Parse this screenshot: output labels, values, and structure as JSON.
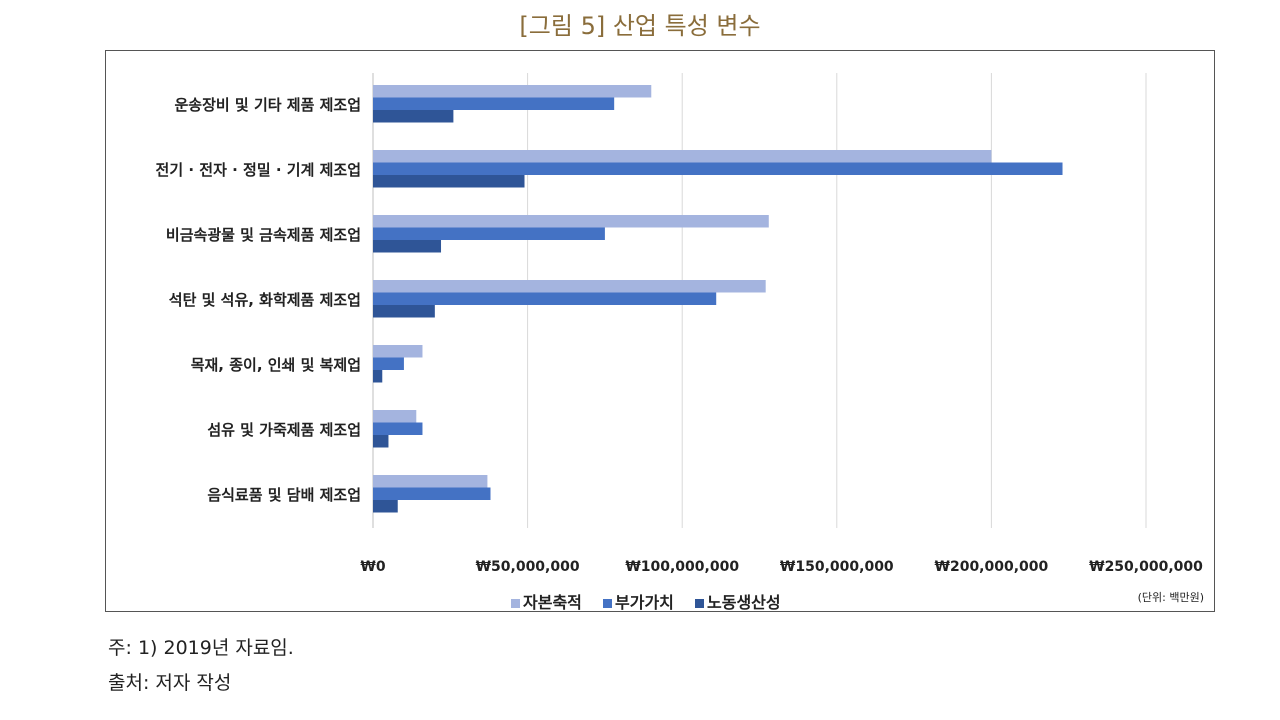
{
  "figure_title": "[그림 5] 산업 특성 변수",
  "notes": {
    "note1_prefix": "주:",
    "note1_text": "1) 2019년 자료임.",
    "note2_prefix": "출처:",
    "note2_text": "저자 작성"
  },
  "chart_data": {
    "type": "bar",
    "orientation": "horizontal",
    "categories": [
      "운송장비 및 기타 제품 제조업",
      "전기 · 전자 · 정밀 · 기계 제조업",
      "비금속광물 및 금속제품 제조업",
      "석탄 및 석유, 화학제품 제조업",
      "목재, 종이, 인쇄 및 복제업",
      "섬유 및 가죽제품 제조업",
      "음식료품 및 담배 제조업"
    ],
    "series": [
      {
        "name": "자본축적",
        "color": "#a4b4df",
        "values": [
          90000000,
          200000000,
          128000000,
          127000000,
          16000000,
          14000000,
          37000000
        ]
      },
      {
        "name": "부가가치",
        "color": "#4472c4",
        "values": [
          78000000,
          223000000,
          75000000,
          111000000,
          10000000,
          16000000,
          38000000
        ]
      },
      {
        "name": "노동생산성",
        "color": "#2f5597",
        "values": [
          26000000,
          49000000,
          22000000,
          20000000,
          3000000,
          5000000,
          8000000
        ]
      }
    ],
    "xlim": [
      0,
      250000000
    ],
    "xticks": [
      0,
      50000000,
      100000000,
      150000000,
      200000000,
      250000000
    ],
    "xtick_labels": [
      "₩0",
      "₩50,000,000",
      "₩100,000,000",
      "₩150,000,000",
      "₩200,000,000",
      "₩250,000,000"
    ],
    "unit_note": "(단위: 백만원)",
    "grid": true,
    "legend_position": "bottom"
  }
}
